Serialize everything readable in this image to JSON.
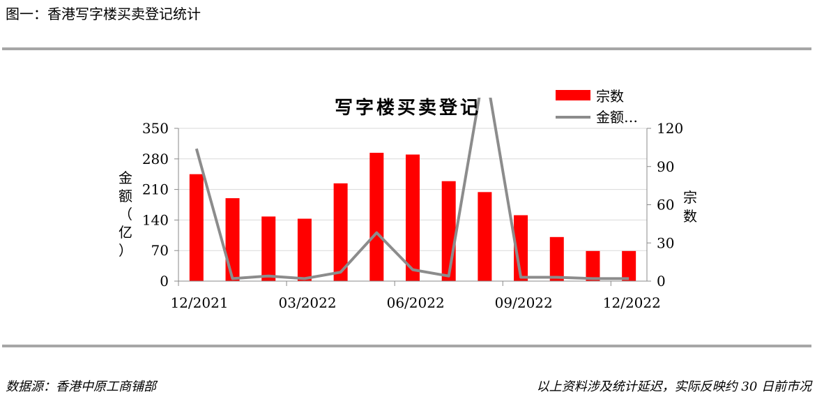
{
  "figure_title": "图一：香港写字楼买卖登记统计",
  "source_note": "数据源：香港中原工商铺部",
  "delay_note": "以上资料涉及统计延迟，实际反映约 30 日前市况",
  "colors": {
    "bar": "#ff0000",
    "line": "#8c8c8c",
    "grid": "#d9d9d9",
    "rule": "#a6a6a6"
  },
  "chart_data": {
    "type": "bar",
    "title": "写字楼买卖登记",
    "left_axis_label": "金额（亿）",
    "right_axis_label": "宗数",
    "left_ylim": [
      0,
      350
    ],
    "left_ticks": [
      "0",
      "70",
      "140",
      "210",
      "280",
      "350"
    ],
    "right_ylim": [
      0,
      120
    ],
    "right_ticks": [
      "0",
      "30",
      "60",
      "90",
      "120"
    ],
    "x_tick_labels": [
      "12/2021",
      "03/2022",
      "06/2022",
      "09/2022",
      "12/2022"
    ],
    "months": 13,
    "legend_position": "top-right",
    "grid": "horizontal",
    "series": [
      {
        "name": "宗数",
        "type": "bar",
        "axis": "left",
        "values": [
          245,
          190,
          148,
          143,
          224,
          294,
          290,
          229,
          204,
          151,
          101,
          69,
          69
        ]
      },
      {
        "name": "金额…",
        "type": "line",
        "axis": "right",
        "values": [
          104,
          2,
          4,
          2,
          7,
          38,
          9,
          4,
          170,
          3,
          3,
          2,
          2
        ]
      }
    ]
  }
}
